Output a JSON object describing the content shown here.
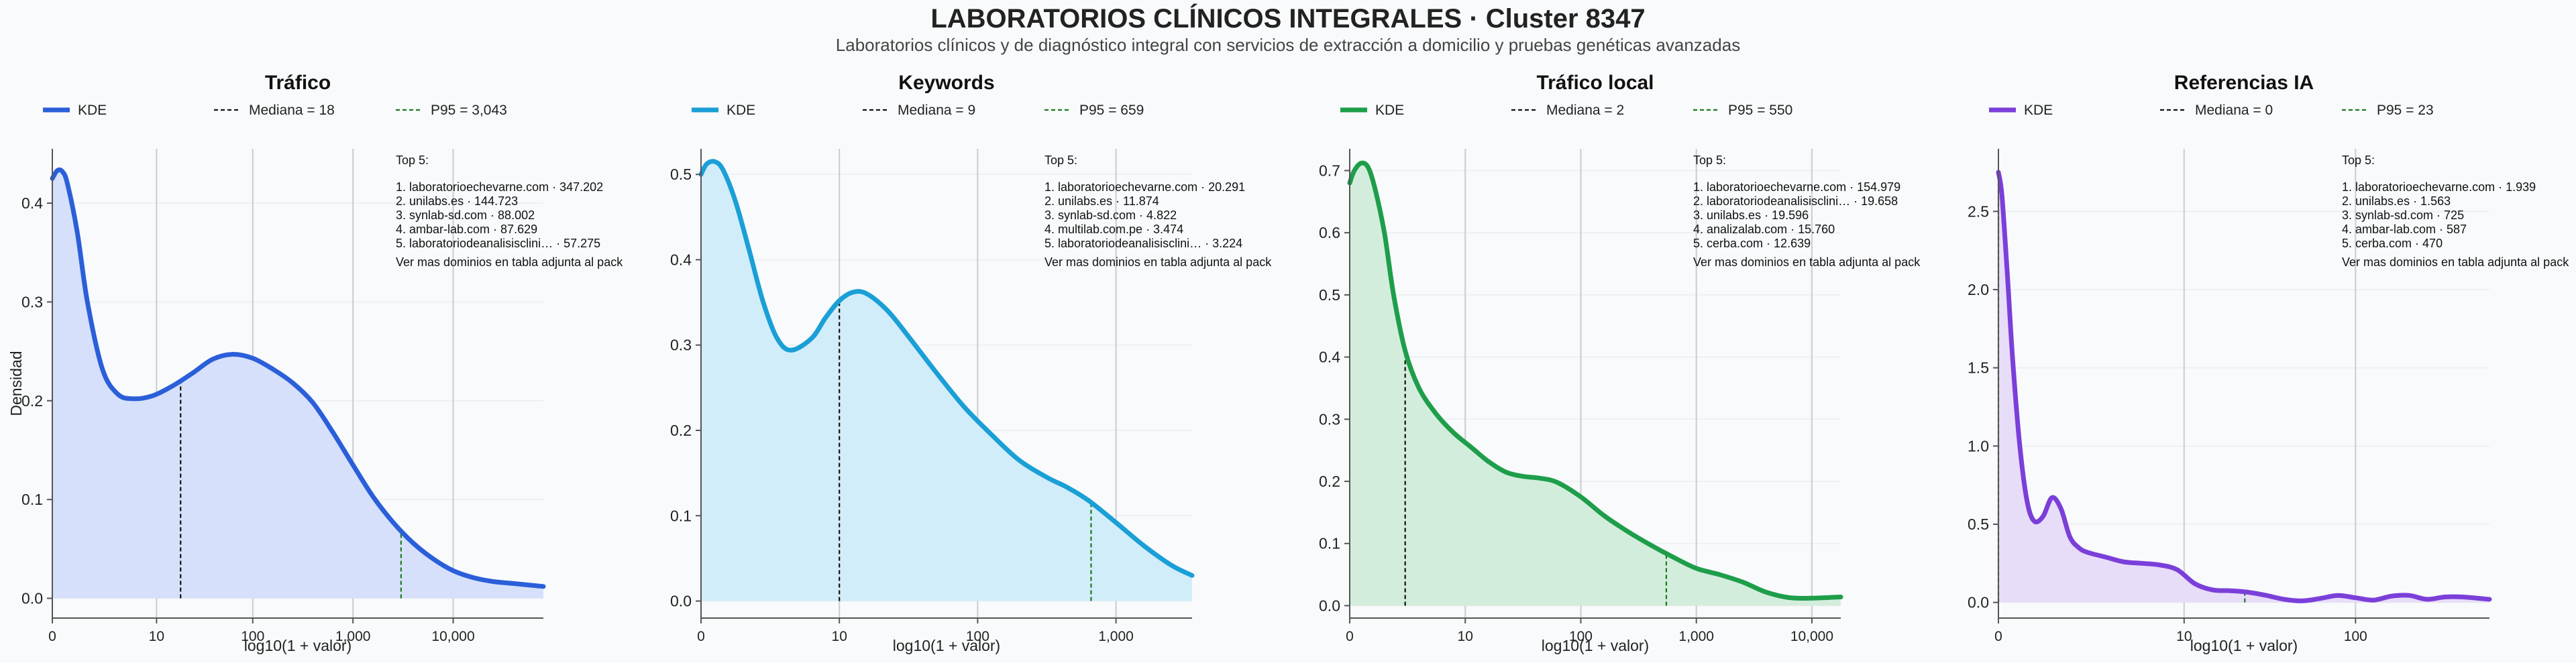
{
  "header": {
    "title": "LABORATORIOS CLÍNICOS INTEGRALES · Cluster 8347",
    "subtitle": "Laboratorios clínicos y de diagnóstico integral con servicios de extracción a domicilio y pruebas genéticas avanzadas"
  },
  "colors": {
    "background": "#f8fafc",
    "median_line": "#111111",
    "p95_line": "#1a7a1a"
  },
  "chart_data": [
    {
      "type": "area",
      "title": "Tráfico",
      "color": "#2b5fd9",
      "fill": "#d6e0fa",
      "legend": {
        "kde": "KDE",
        "median": "Mediana = 18",
        "p95": "P95 = 3,043"
      },
      "xlabel": "log10(1 + valor)",
      "ylabel": "Densidad",
      "xlim": [
        0,
        4.9
      ],
      "ylim": [
        -0.02,
        0.455
      ],
      "xticks": [
        {
          "v": 0,
          "label": "0"
        },
        {
          "v": 1.04,
          "label": "10"
        },
        {
          "v": 2.0,
          "label": "100"
        },
        {
          "v": 3.0,
          "label": "1,000"
        },
        {
          "v": 4.0,
          "label": "10,000"
        }
      ],
      "yticks": [
        {
          "v": 0,
          "label": "0.0"
        },
        {
          "v": 0.1,
          "label": "0.1"
        },
        {
          "v": 0.2,
          "label": "0.2"
        },
        {
          "v": 0.3,
          "label": "0.3"
        },
        {
          "v": 0.4,
          "label": "0.4"
        }
      ],
      "median_x": 1.28,
      "p95_x": 3.48,
      "x": [
        0,
        0.05,
        0.1,
        0.15,
        0.25,
        0.35,
        0.5,
        0.65,
        0.8,
        1.0,
        1.2,
        1.4,
        1.6,
        1.8,
        2.0,
        2.2,
        2.4,
        2.6,
        2.8,
        3.0,
        3.2,
        3.4,
        3.6,
        3.8,
        4.0,
        4.2,
        4.4,
        4.6,
        4.9
      ],
      "y": [
        0.425,
        0.433,
        0.432,
        0.42,
        0.37,
        0.3,
        0.232,
        0.207,
        0.202,
        0.205,
        0.215,
        0.228,
        0.242,
        0.247,
        0.243,
        0.232,
        0.218,
        0.198,
        0.168,
        0.135,
        0.103,
        0.077,
        0.056,
        0.04,
        0.028,
        0.021,
        0.017,
        0.015,
        0.012
      ],
      "top5": {
        "heading": "Top 5:",
        "items": [
          "1. laboratorioechevarne.com · 347.202",
          "2. unilabs.es · 144.723",
          "3. synlab-sd.com · 88.002",
          "4. ambar-lab.com · 87.629",
          "5. laboratoriodeanalisisclini… · 57.275"
        ],
        "footer": "Ver mas dominios en tabla adjunta al pack"
      }
    },
    {
      "type": "area",
      "title": "Keywords",
      "color": "#1a9fd6",
      "fill": "#d2edfa",
      "legend": {
        "kde": "KDE",
        "median": "Mediana = 9",
        "p95": "P95 = 659"
      },
      "xlabel": "log10(1 + valor)",
      "ylabel": "",
      "xlim": [
        0,
        3.55
      ],
      "ylim": [
        -0.02,
        0.53
      ],
      "xticks": [
        {
          "v": 0,
          "label": "0"
        },
        {
          "v": 1.0,
          "label": "10"
        },
        {
          "v": 2.0,
          "label": "100"
        },
        {
          "v": 3.0,
          "label": "1,000"
        }
      ],
      "yticks": [
        {
          "v": 0,
          "label": "0.0"
        },
        {
          "v": 0.1,
          "label": "0.1"
        },
        {
          "v": 0.2,
          "label": "0.2"
        },
        {
          "v": 0.3,
          "label": "0.3"
        },
        {
          "v": 0.4,
          "label": "0.4"
        },
        {
          "v": 0.5,
          "label": "0.5"
        }
      ],
      "median_x": 1.0,
      "p95_x": 2.82,
      "x": [
        0,
        0.04,
        0.1,
        0.16,
        0.25,
        0.35,
        0.45,
        0.55,
        0.65,
        0.8,
        0.9,
        1.0,
        1.1,
        1.2,
        1.35,
        1.5,
        1.7,
        1.9,
        2.1,
        2.3,
        2.5,
        2.65,
        2.8,
        3.0,
        3.2,
        3.4,
        3.55
      ],
      "y": [
        0.5,
        0.512,
        0.515,
        0.505,
        0.468,
        0.41,
        0.35,
        0.308,
        0.294,
        0.308,
        0.332,
        0.352,
        0.362,
        0.36,
        0.34,
        0.31,
        0.268,
        0.228,
        0.195,
        0.165,
        0.145,
        0.133,
        0.118,
        0.092,
        0.065,
        0.042,
        0.03
      ],
      "top5": {
        "heading": "Top 5:",
        "items": [
          "1. laboratorioechevarne.com · 20.291",
          "2. unilabs.es · 11.874",
          "3. synlab-sd.com · 4.822",
          "4. multilab.com.pe · 3.474",
          "5. laboratoriodeanalisisclini… · 3.224"
        ],
        "footer": "Ver mas dominios en tabla adjunta al pack"
      }
    },
    {
      "type": "area",
      "title": "Tráfico local",
      "color": "#1e9e4a",
      "fill": "#d3eddc",
      "legend": {
        "kde": "KDE",
        "median": "Mediana = 2",
        "p95": "P95 = 550"
      },
      "xlabel": "log10(1 + valor)",
      "ylabel": "",
      "xlim": [
        0,
        4.25
      ],
      "ylim": [
        -0.02,
        0.735
      ],
      "xticks": [
        {
          "v": 0,
          "label": "0"
        },
        {
          "v": 1.0,
          "label": "10"
        },
        {
          "v": 2.0,
          "label": "100"
        },
        {
          "v": 3.0,
          "label": "1,000"
        },
        {
          "v": 4.0,
          "label": "10,000"
        }
      ],
      "yticks": [
        {
          "v": 0,
          "label": "0.0"
        },
        {
          "v": 0.1,
          "label": "0.1"
        },
        {
          "v": 0.2,
          "label": "0.2"
        },
        {
          "v": 0.3,
          "label": "0.3"
        },
        {
          "v": 0.4,
          "label": "0.4"
        },
        {
          "v": 0.5,
          "label": "0.5"
        },
        {
          "v": 0.6,
          "label": "0.6"
        },
        {
          "v": 0.7,
          "label": "0.7"
        }
      ],
      "median_x": 0.48,
      "p95_x": 2.74,
      "x": [
        0,
        0.04,
        0.1,
        0.16,
        0.22,
        0.3,
        0.38,
        0.48,
        0.6,
        0.75,
        0.9,
        1.05,
        1.2,
        1.35,
        1.5,
        1.65,
        1.8,
        2.0,
        2.2,
        2.4,
        2.6,
        2.8,
        3.0,
        3.2,
        3.4,
        3.6,
        3.8,
        4.0,
        4.25
      ],
      "y": [
        0.68,
        0.7,
        0.712,
        0.705,
        0.67,
        0.6,
        0.5,
        0.41,
        0.35,
        0.308,
        0.278,
        0.255,
        0.232,
        0.215,
        0.208,
        0.205,
        0.198,
        0.175,
        0.145,
        0.12,
        0.098,
        0.078,
        0.06,
        0.05,
        0.038,
        0.022,
        0.013,
        0.012,
        0.014
      ],
      "top5": {
        "heading": "Top 5:",
        "items": [
          "1. laboratorioechevarne.com · 154.979",
          "2. laboratoriodeanalisisclini… · 19.658",
          "3. unilabs.es · 19.596",
          "4. analizalab.com · 15.760",
          "5. cerba.com · 12.639"
        ],
        "footer": "Ver mas dominios en tabla adjunta al pack"
      }
    },
    {
      "type": "area",
      "title": "Referencias IA",
      "color": "#7b3fd9",
      "fill": "#e8ddf9",
      "legend": {
        "kde": "KDE",
        "median": "Mediana = 0",
        "p95": "P95 = 23"
      },
      "xlabel": "log10(1 + valor)",
      "ylabel": "",
      "xlim": [
        0,
        2.75
      ],
      "ylim": [
        -0.1,
        2.9
      ],
      "xticks": [
        {
          "v": 0,
          "label": "0"
        },
        {
          "v": 1.04,
          "label": "10"
        },
        {
          "v": 2.0,
          "label": "100"
        }
      ],
      "yticks": [
        {
          "v": 0,
          "label": "0.0"
        },
        {
          "v": 0.5,
          "label": "0.5"
        },
        {
          "v": 1.0,
          "label": "1.0"
        },
        {
          "v": 1.5,
          "label": "1.5"
        },
        {
          "v": 2.0,
          "label": "2.0"
        },
        {
          "v": 2.5,
          "label": "2.5"
        }
      ],
      "median_x": 0,
      "p95_x": 1.38,
      "x": [
        0,
        0.02,
        0.05,
        0.08,
        0.12,
        0.16,
        0.2,
        0.25,
        0.3,
        0.35,
        0.4,
        0.45,
        0.5,
        0.6,
        0.7,
        0.8,
        0.9,
        1.0,
        1.1,
        1.2,
        1.3,
        1.4,
        1.5,
        1.6,
        1.7,
        1.8,
        1.9,
        2.0,
        2.1,
        2.2,
        2.3,
        2.4,
        2.5,
        2.6,
        2.75
      ],
      "y": [
        2.75,
        2.6,
        2.1,
        1.55,
        1.0,
        0.65,
        0.52,
        0.55,
        0.67,
        0.6,
        0.42,
        0.35,
        0.32,
        0.29,
        0.26,
        0.25,
        0.24,
        0.21,
        0.12,
        0.08,
        0.075,
        0.065,
        0.045,
        0.02,
        0.01,
        0.025,
        0.045,
        0.03,
        0.015,
        0.04,
        0.045,
        0.02,
        0.035,
        0.035,
        0.02
      ],
      "top5": {
        "heading": "Top 5:",
        "items": [
          "1. laboratorioechevarne.com · 1.939",
          "2. unilabs.es · 1.563",
          "3. synlab-sd.com · 725",
          "4. ambar-lab.com · 587",
          "5. cerba.com · 470"
        ],
        "footer": "Ver mas dominios en tabla adjunta al pack"
      }
    }
  ]
}
